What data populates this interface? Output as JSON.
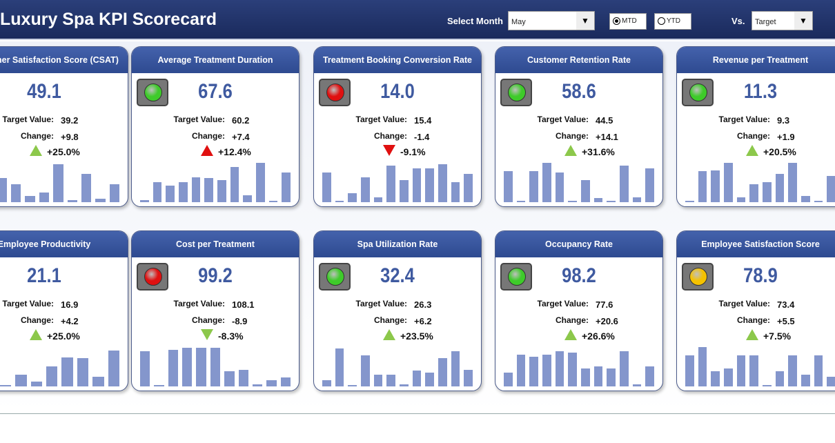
{
  "header": {
    "title": "Luxury Spa KPI Scorecard",
    "select_month_label": "Select Month",
    "month": "May",
    "mtd": "MTD",
    "ytd": "YTD",
    "period_selected": "MTD",
    "vs_label": "Vs.",
    "vs_value": "Target"
  },
  "labels": {
    "target": "Target Value:",
    "change": "Change:"
  },
  "colors": {
    "green": "#3ecb2a",
    "red": "#e01010",
    "yellow": "#f5c200",
    "up_good": "#8cc84b",
    "down_bad": "#e01010"
  },
  "cards": [
    {
      "title": "Customer Satisfaction Score (CSAT)",
      "value": "49.1",
      "target": "39.2",
      "change": "+9.8",
      "pct": "+25.0%",
      "dir": "up",
      "arrow": "green",
      "light": "green",
      "bars": [
        0.5,
        0.7,
        0.6,
        0.45,
        0.15,
        0.25,
        0.95,
        0.05,
        0.7,
        0.08,
        0.45
      ]
    },
    {
      "title": "Average Treatment Duration",
      "value": "67.6",
      "target": "60.2",
      "change": "+7.4",
      "pct": "+12.4%",
      "dir": "up",
      "arrow": "red",
      "light": "green",
      "bars": [
        0.05,
        0.5,
        0.42,
        0.5,
        0.62,
        0.6,
        0.55,
        0.88,
        0.18,
        0.98,
        0.02,
        0.75
      ]
    },
    {
      "title": "Treatment Booking Conversion Rate",
      "value": "14.0",
      "target": "15.4",
      "change": "-1.4",
      "pct": "-9.1%",
      "dir": "down",
      "arrow": "red",
      "light": "red",
      "bars": [
        0.75,
        0.02,
        0.22,
        0.62,
        0.12,
        0.92,
        0.55,
        0.85,
        0.85,
        0.95,
        0.5,
        0.7
      ]
    },
    {
      "title": "Customer Retention Rate",
      "value": "58.6",
      "target": "44.5",
      "change": "+14.1",
      "pct": "+31.6%",
      "dir": "up",
      "arrow": "green",
      "light": "green",
      "bars": [
        0.78,
        0.02,
        0.78,
        0.98,
        0.75,
        0.02,
        0.55,
        0.1,
        0.02,
        0.92,
        0.12,
        0.85
      ]
    },
    {
      "title": "Revenue per Treatment",
      "value": "11.3",
      "target": "9.3",
      "change": "+1.9",
      "pct": "+20.5%",
      "dir": "up",
      "arrow": "green",
      "light": "green",
      "bars": [
        0.02,
        0.78,
        0.8,
        0.98,
        0.12,
        0.45,
        0.5,
        0.7,
        0.98,
        0.15,
        0.02,
        0.65
      ]
    },
    {
      "title": "Employee Productivity",
      "value": "21.1",
      "target": "16.9",
      "change": "+4.2",
      "pct": "+25.0%",
      "dir": "up",
      "arrow": "green",
      "light": "green",
      "bars": [
        0.5,
        0.9,
        0.02,
        0.3,
        0.12,
        0.5,
        0.72,
        0.7,
        0.25,
        0.9
      ]
    },
    {
      "title": "Cost per Treatment",
      "value": "99.2",
      "target": "108.1",
      "change": "-8.9",
      "pct": "-8.3%",
      "dir": "down",
      "arrow": "green",
      "light": "red",
      "bars": [
        0.88,
        0.02,
        0.92,
        0.96,
        0.96,
        0.96,
        0.38,
        0.42,
        0.05,
        0.15,
        0.22
      ]
    },
    {
      "title": "Spa Utilization Rate",
      "value": "32.4",
      "target": "26.3",
      "change": "+6.2",
      "pct": "+23.5%",
      "dir": "up",
      "arrow": "green",
      "light": "green",
      "bars": [
        0.15,
        0.95,
        0.02,
        0.78,
        0.3,
        0.3,
        0.05,
        0.4,
        0.35,
        0.7,
        0.88,
        0.42
      ]
    },
    {
      "title": "Occupancy Rate",
      "value": "98.2",
      "target": "77.6",
      "change": "+20.6",
      "pct": "+26.6%",
      "dir": "up",
      "arrow": "green",
      "light": "green",
      "bars": [
        0.35,
        0.8,
        0.75,
        0.8,
        0.88,
        0.85,
        0.45,
        0.5,
        0.45,
        0.88,
        0.05,
        0.5
      ]
    },
    {
      "title": "Employee Satisfaction Score",
      "value": "78.9",
      "target": "73.4",
      "change": "+5.5",
      "pct": "+7.5%",
      "dir": "up",
      "arrow": "green",
      "light": "yellow",
      "bars": [
        0.78,
        0.98,
        0.38,
        0.45,
        0.78,
        0.78,
        0.02,
        0.38,
        0.78,
        0.3,
        0.78,
        0.25
      ]
    }
  ]
}
